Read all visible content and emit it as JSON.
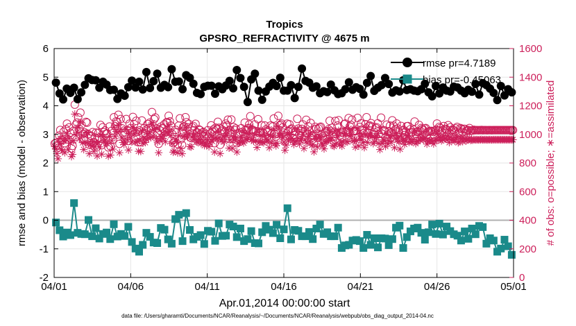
{
  "chart_data": {
    "type": "line",
    "title": "Tropics",
    "subtitle": "GPSRO_REFRACTIVITY @ 4675 m",
    "xlabel": "Apr.01,2014 00:00:00 start",
    "ylabel_left": "rmse and bias (model - observation)",
    "ylabel_right": "# of obs: o=possible; ∗=assimilated",
    "footnote": "data file: /Users/gharamti/Documents/NCAR/Reanalysis/~/Documents/NCAR/Reanalysis/webpub/obs_diag_output_2014-04.nc",
    "x_range_days": [
      0,
      30
    ],
    "x_tick_positions_days": [
      0,
      5,
      10,
      15,
      20,
      25,
      30
    ],
    "x_tick_labels": [
      "04/01",
      "04/06",
      "04/11",
      "04/16",
      "04/21",
      "04/26",
      "05/01"
    ],
    "ylim_left": [
      -2,
      6
    ],
    "yticks_left": [
      -2,
      -1,
      0,
      1,
      2,
      3,
      4,
      5,
      6
    ],
    "ylim_right": [
      0,
      1600
    ],
    "yticks_right": [
      0,
      200,
      400,
      600,
      800,
      1000,
      1200,
      1400,
      1600
    ],
    "zero_line": 0,
    "grid": true,
    "legend_location": "top-right",
    "colors": {
      "rmse": "#000000",
      "bias": "#1a8a8a",
      "obs": "#cc1f5a",
      "zero_line": "#b0b0b0",
      "grid": "#e6e6e6"
    },
    "series": [
      {
        "name": "rmse",
        "legend_label": "rmse pr=4.7189",
        "axis": "left",
        "marker": "circle",
        "values": [
          4.81,
          4.43,
          4.22,
          4.6,
          4.45,
          4.63,
          4.23,
          4.47,
          4.73,
          4.96,
          4.9,
          4.89,
          4.63,
          4.84,
          4.74,
          4.55,
          4.56,
          4.24,
          4.43,
          4.35,
          4.65,
          4.88,
          4.64,
          4.84,
          4.57,
          5.18,
          4.62,
          4.86,
          5.12,
          4.63,
          4.73,
          4.65,
          5.28,
          4.84,
          4.85,
          4.58,
          5.07,
          4.98,
          4.77,
          4.45,
          4.41,
          4.66,
          4.7,
          4.7,
          4.42,
          4.68,
          4.58,
          4.71,
          4.87,
          4.61,
          5.25,
          4.97,
          4.66,
          4.13,
          4.92,
          5.12,
          4.53,
          4.21,
          4.5,
          4.67,
          4.8,
          4.69,
          4.98,
          4.53,
          4.53,
          4.72,
          4.27,
          4.66,
          5.3,
          4.87,
          4.81,
          4.63,
          4.68,
          4.44,
          4.51,
          4.48,
          4.74,
          4.54,
          4.41,
          4.44,
          4.58,
          4.82,
          4.56,
          4.65,
          4.59,
          4.39,
          4.8,
          5.04,
          4.52,
          4.63,
          4.72,
          4.97,
          4.76,
          4.46,
          4.54,
          4.5,
          4.89,
          4.55,
          4.58,
          4.53,
          4.51,
          4.58,
          4.77,
          4.47,
          4.33,
          4.69,
          4.43,
          4.64,
          4.53,
          4.5,
          4.67,
          4.64,
          4.53,
          4.44,
          4.56,
          4.49,
          4.76,
          4.39,
          4.79,
          4.72,
          4.6,
          4.45,
          4.2,
          4.69,
          4.36,
          4.58,
          4.47
        ]
      },
      {
        "name": "bias",
        "legend_label": "bias pr=-0.45063",
        "axis": "left",
        "marker": "square",
        "values": [
          -0.08,
          -0.35,
          -0.57,
          -0.43,
          -0.52,
          0.6,
          -0.44,
          -0.48,
          -0.49,
          0.01,
          -0.56,
          -0.28,
          -0.64,
          -0.48,
          -0.43,
          -0.66,
          -0.14,
          -0.57,
          -0.48,
          -0.55,
          -0.23,
          -0.76,
          -0.99,
          -1.1,
          -0.86,
          -0.44,
          -0.58,
          -0.78,
          -0.8,
          -0.27,
          -0.33,
          -0.67,
          -0.82,
          0.04,
          0.19,
          -0.73,
          0.25,
          -0.34,
          -0.67,
          -0.58,
          -0.52,
          -0.83,
          -0.37,
          -0.4,
          -0.72,
          -0.11,
          -0.55,
          -0.54,
          -0.15,
          -0.22,
          -0.59,
          -0.29,
          -0.73,
          -0.66,
          -0.38,
          -0.8,
          -0.81,
          -0.42,
          -0.2,
          -0.33,
          -0.45,
          -0.16,
          -0.63,
          -0.32,
          0.42,
          -0.67,
          -0.34,
          -0.37,
          -0.56,
          -0.56,
          -0.41,
          -0.66,
          -0.29,
          -0.15,
          -0.48,
          -0.42,
          -0.56,
          -0.56,
          -0.26,
          -0.97,
          -0.88,
          -0.86,
          -0.71,
          -0.69,
          -0.73,
          -0.97,
          -0.51,
          -0.86,
          -0.63,
          -0.95,
          -0.63,
          -0.64,
          -0.87,
          -0.66,
          -0.26,
          -0.19,
          -0.97,
          -0.59,
          -0.39,
          -0.29,
          -0.26,
          -0.44,
          -0.68,
          -0.42,
          -0.15,
          -0.48,
          -0.12,
          -0.5,
          -0.22,
          -0.38,
          -0.49,
          -0.54,
          -0.71,
          -0.39,
          -0.65,
          -0.29,
          -0.49,
          -0.2,
          -0.24,
          -0.82,
          -0.63,
          -0.71,
          -1.1,
          -0.99,
          -0.68,
          -0.91,
          -1.21
        ]
      },
      {
        "name": "obs possible",
        "axis": "right",
        "marker": "circle-open",
        "values": [
          936,
          941,
          925,
          921,
          992,
          1031,
          963,
          959,
          1019,
          939,
          1037,
          1075,
          965,
          1049,
          1011,
          902,
          920,
          1026,
          1208,
          1068,
          1083,
          1119,
          1039,
          1152,
          1067,
          1002,
          959,
          1013,
          1087,
          1082,
          1002,
          927,
          992,
          987,
          1016,
          946,
          978,
          1012,
          913,
          1010,
          979,
          1066,
          925,
          1050,
          1015,
          1027,
          1004,
          1004,
          909,
          1055,
          916,
          1025,
          962,
          1120,
          1057,
          1091,
          1085,
          1137,
          934,
          1107,
          1043,
          1010,
          996,
          1013,
          1107,
          1030,
          954,
          1075,
          1044,
          1014,
          1122,
          1072,
          1013,
          1095,
          1017,
          945,
          1028,
          945,
          1097,
          1006,
          1043,
          1009,
          1033,
          1072,
          1045,
          1082,
          1046,
          1156,
          1058,
          1106,
          1118,
          1042,
          1013,
          934,
          1028,
          1054,
          1043,
          1041,
          1071,
          1016,
          1085,
          1085,
          1130,
          1091,
          1061,
          1004,
          938,
          947,
          1032,
          1015,
          933,
          1061,
          1112,
          966,
          926,
          1053,
          1057,
          1120,
          1085,
          1049,
          1073,
          980,
          976,
          1050,
          1059,
          1030,
          1074,
          1014,
          1012,
          1035,
          1030,
          1002,
          1012,
          1017,
          987,
          1003,
          990,
          1029,
          979,
          1007,
          1063,
          1020,
          1035,
          939,
          1047,
          1036,
          1088,
          1046,
          927,
          1021,
          1032,
          1054,
          1016,
          1075,
          1062,
          1103,
          968,
          1029,
          1104,
          967,
          1051,
          1030,
          1041,
          939,
          1005,
          1005,
          1013,
          1043,
          1018,
          1006,
          1082,
          1033,
          1030,
          1044,
          1069,
          1127,
          1032,
          1033,
          1019,
          1070,
          1022,
          973,
          1106,
          1011,
          1015,
          1065,
          1012,
          1007,
          1062,
          1035,
          1019,
          1028,
          971,
          1061,
          1005,
          1055,
          1111,
          1002,
          985,
          1004,
          1130,
          1062,
          1068,
          1076,
          1049,
          1012,
          952,
          990,
          1075,
          1023,
          1071,
          1036,
          1041,
          1022,
          996,
          1019,
          1021,
          1109,
          1041,
          998,
          1025,
          1039,
          1070,
          966,
          1028,
          1102,
          1005,
          1056,
          1020,
          1080,
          989,
          996,
          940,
          1053,
          1039,
          976,
          1042,
          1050,
          1054,
          1000,
          987,
          962,
          1011,
          1019,
          1023,
          1036,
          1095,
          1024,
          1046,
          987,
          981,
          1094,
          1005,
          1062,
          1099,
          992,
          1013,
          982,
          1014,
          1071,
          1076,
          1017,
          1014,
          1114,
          1056,
          1066,
          1103,
          1021,
          1025,
          975,
          1023,
          1115,
          984,
          1052,
          1077,
          1032,
          1008,
          972,
          1071,
          1120,
          1009,
          1059,
          1062,
          1079,
          1053,
          1002,
          1016,
          1045,
          1050,
          1077,
          1003,
          957,
          1117,
          1003,
          1029,
          1028,
          980,
          1068,
          999,
          1023,
          1061,
          1012,
          1098,
          1061,
          971,
          1038,
          1076,
          1041,
          1017,
          960,
          1059,
          1027,
          1031,
          995,
          1020,
          1057,
          1058,
          1010,
          1035,
          1016,
          1015,
          1033,
          1090,
          1002,
          1018,
          1018,
          1066,
          1026,
          1045,
          1039,
          1029,
          1041,
          1044,
          997,
          1018,
          1022,
          1024,
          1024,
          1018,
          1000,
          1023,
          1033,
          1076,
          1027,
          1052,
          1044,
          1022,
          1031,
          1058,
          1038,
          1039,
          1032,
          1064,
          1009,
          1049,
          1028,
          1035,
          1029,
          1019,
          1042,
          1052,
          1008,
          1016,
          1044,
          1039,
          1017,
          1039,
          1038,
          1021,
          1028,
          1031,
          1044,
          1025,
          1028,
          1027,
          1032,
          1029,
          1030,
          1030,
          1029,
          1030,
          1030,
          1031,
          1029,
          1030,
          1030,
          1030,
          1029,
          1030,
          1030,
          1030,
          1029,
          1030,
          1030,
          1030,
          1030,
          1030,
          1030,
          1030,
          1030,
          1030,
          1030,
          1030,
          1030,
          1030,
          1030,
          1030,
          1030,
          1030,
          1030,
          1030
        ]
      },
      {
        "name": "obs assimilated",
        "axis": "right",
        "marker": "asterisk",
        "values": [
          915,
          897,
          866,
          830,
          931,
          972,
          895,
          885,
          953,
          872,
          966,
          1005,
          895,
          973,
          940,
          845,
          860,
          957,
          1142,
          995,
          1015,
          1050,
          968,
          1085,
          994,
          942,
          894,
          946,
          1015,
          1011,
          937,
          865,
          925,
          919,
          948,
          882,
          912,
          944,
          849,
          943,
          913,
          995,
          862,
          982,
          950,
          961,
          937,
          937,
          848,
          986,
          855,
          956,
          897,
          1050,
          987,
          1020,
          1015,
          1065,
          872,
          1037,
          975,
          943,
          930,
          946,
          1036,
          962,
          891,
          1005,
          975,
          947,
          1050,
          1002,
          946,
          1024,
          949,
          882,
          960,
          881,
          1026,
          939,
          974,
          943,
          964,
          1002,
          976,
          1011,
          977,
          1081,
          988,
          1034,
          1045,
          973,
          946,
          872,
          960,
          985,
          974,
          972,
          1001,
          949,
          1014,
          1014,
          1056,
          1020,
          992,
          938,
          876,
          884,
          965,
          948,
          871,
          991,
          1039,
          902,
          865,
          984,
          987,
          1047,
          1014,
          980,
          1003,
          915,
          912,
          981,
          989,
          962,
          1003,
          947,
          945,
          967,
          962,
          936,
          945,
          950,
          922,
          937,
          925,
          962,
          914,
          941,
          993,
          953,
          967,
          877,
          978,
          968,
          1017,
          977,
          866,
          954,
          964,
          985,
          949,
          1005,
          992,
          1031,
          904,
          961,
          1032,
          903,
          982,
          962,
          973,
          877,
          939,
          939,
          946,
          974,
          951,
          940,
          1011,
          965,
          962,
          975,
          999,
          1053,
          964,
          965,
          952,
          1000,
          955,
          909,
          1034,
          945,
          948,
          995,
          946,
          941,
          992,
          967,
          952,
          960,
          907,
          991,
          939,
          986,
          1038,
          936,
          920,
          938,
          1056,
          992,
          998,
          1005,
          980,
          946,
          889,
          925,
          1005,
          956,
          1001,
          968,
          973,
          955,
          930,
          952,
          954,
          1036,
          973,
          932,
          958,
          971,
          1000,
          902,
          961,
          1030,
          939,
          987,
          953,
          1009,
          924,
          930,
          878,
          984,
          971,
          912,
          974,
          981,
          985,
          934,
          922,
          899,
          945,
          952,
          956,
          968,
          1023,
          957,
          977,
          922,
          917,
          1022,
          939,
          992,
          1027,
          927,
          946,
          918,
          947,
          1001,
          1006,
          950,
          947,
          1041,
          987,
          996,
          1031,
          954,
          958,
          911,
          956,
          1042,
          919,
          983,
          1006,
          964,
          942,
          908,
          1001,
          1047,
          943,
          990,
          992,
          1008,
          984,
          936,
          949,
          977,
          981,
          1006,
          937,
          894,
          1044,
          937,
          961,
          961,
          916,
          998,
          934,
          956,
          992,
          946,
          1026,
          992,
          907,
          970,
          1006,
          973,
          950,
          897,
          990,
          960,
          963,
          930,
          953,
          988,
          989,
          944,
          967,
          949,
          948,
          965,
          1019,
          936,
          951,
          951,
          996,
          959,
          977,
          971,
          962,
          973,
          976,
          932,
          951,
          955,
          957,
          957,
          951,
          934,
          956,
          965,
          1006,
          960,
          983,
          976,
          955,
          964,
          989,
          970,
          971,
          964,
          994,
          943,
          980,
          961,
          967,
          962,
          952,
          974,
          983,
          942,
          949,
          976,
          971,
          950,
          971,
          970,
          954,
          961,
          964,
          976,
          958,
          961,
          960,
          965,
          962,
          963,
          963,
          962,
          963,
          963,
          964,
          962,
          963,
          963,
          963,
          962,
          963,
          963,
          963,
          962,
          963,
          963,
          963,
          963,
          963,
          963,
          963,
          963,
          963,
          963,
          963,
          963,
          963,
          963,
          963,
          963,
          963,
          963,
          963
        ]
      }
    ]
  }
}
